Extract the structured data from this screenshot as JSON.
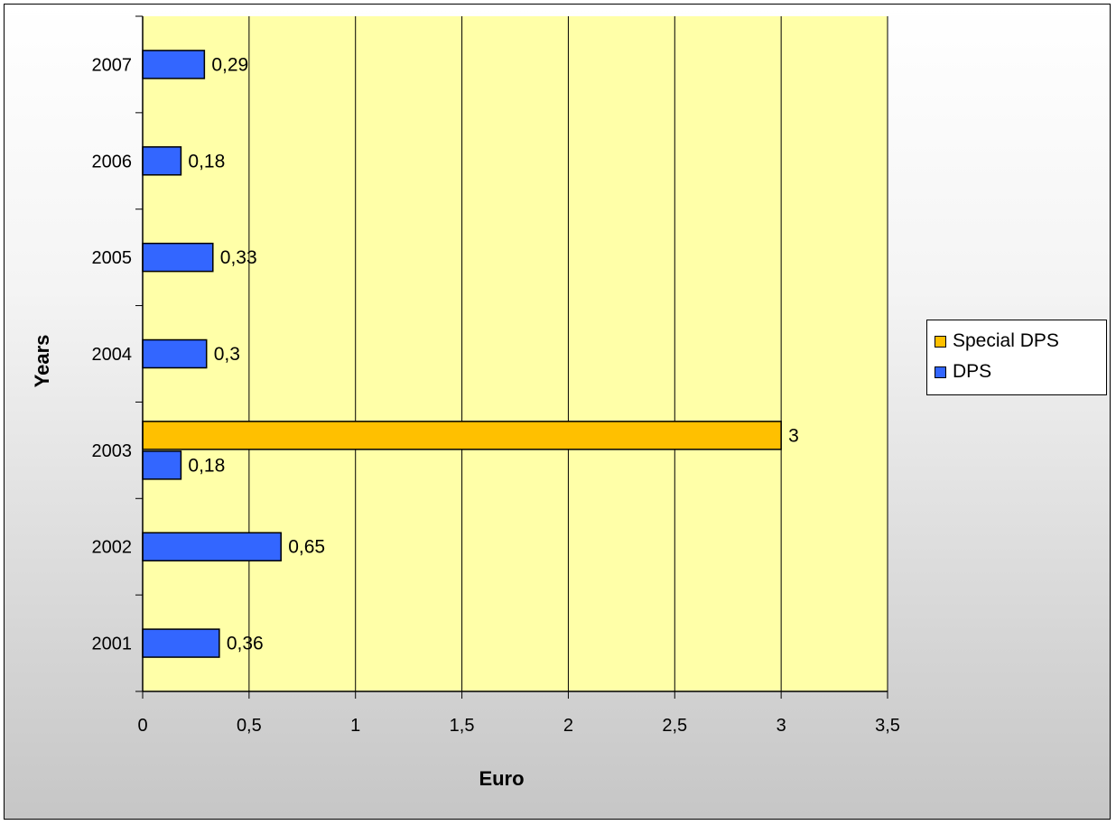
{
  "chart_data": {
    "type": "bar",
    "orientation": "horizontal",
    "title": "",
    "xlabel": "Euro",
    "ylabel": "Years",
    "categories": [
      "2001",
      "2002",
      "2003",
      "2004",
      "2005",
      "2006",
      "2007"
    ],
    "series": [
      {
        "name": "Special DPS",
        "color": "#ffc000",
        "values": [
          null,
          null,
          3,
          null,
          null,
          null,
          null
        ],
        "labels": [
          "",
          "",
          "3",
          "",
          "",
          "",
          ""
        ]
      },
      {
        "name": "DPS",
        "color": "#3366ff",
        "values": [
          0.36,
          0.65,
          0.18,
          0.3,
          0.33,
          0.18,
          0.29
        ],
        "labels": [
          "0,36",
          "0,65",
          "0,18",
          "0,3",
          "0,33",
          "0,18",
          "0,29"
        ]
      }
    ],
    "xlim": [
      0,
      3.5
    ],
    "xticks": [
      0,
      0.5,
      1,
      1.5,
      2,
      2.5,
      3,
      3.5
    ],
    "xtick_labels": [
      "0",
      "0,5",
      "1",
      "1,5",
      "2",
      "2,5",
      "3",
      "3,5"
    ],
    "grid": "vertical",
    "plot_background": "#ffffa8",
    "legend_position": "right",
    "legend": [
      "Special DPS",
      "DPS"
    ]
  }
}
